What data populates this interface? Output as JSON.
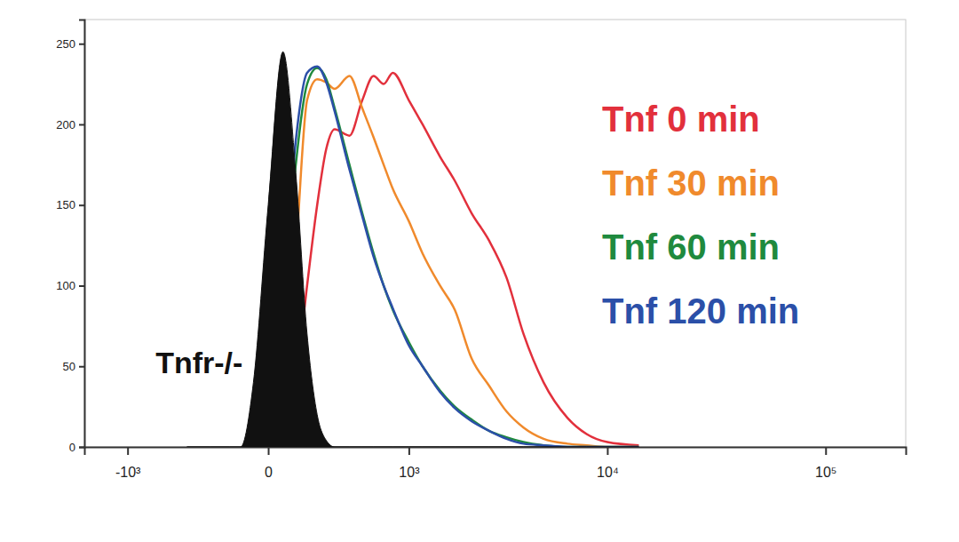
{
  "chart_data": {
    "type": "line",
    "log": "x",
    "legend": "upper right",
    "xlim": [
      -1740,
      231000
    ],
    "ylim": [
      0,
      265
    ],
    "xticks": [
      {
        "value": -1000,
        "label": "-10³"
      },
      0,
      {
        "value": 1000,
        "label": "10³"
      },
      {
        "value": 10000,
        "label": "10⁴"
      },
      {
        "value": 100000,
        "label": "10⁵"
      }
    ],
    "yticks": [
      0,
      50,
      100,
      150,
      200,
      250
    ],
    "x": [
      -400,
      -250,
      -150,
      -100,
      -50,
      0,
      50,
      100,
      150,
      200,
      250,
      300,
      400,
      500,
      600,
      700,
      800,
      1000,
      1200,
      1500,
      1800,
      2200,
      2700,
      3300,
      4000,
      5000,
      6500,
      8000,
      10000,
      14000
    ],
    "series": [
      {
        "name": "Tnf 0 min",
        "color": "#e2303c",
        "type": "line",
        "values": [
          null,
          null,
          null,
          null,
          null,
          0,
          5,
          40,
          100,
          150,
          185,
          197,
          193,
          215,
          230,
          225,
          232,
          215,
          200,
          180,
          165,
          145,
          128,
          105,
          70,
          40,
          18,
          8,
          3,
          1
        ]
      },
      {
        "name": "Tnf 30 min",
        "color": "#f08a2c",
        "type": "line",
        "values": [
          null,
          null,
          null,
          null,
          null,
          0,
          30,
          120,
          215,
          228,
          226,
          222,
          230,
          210,
          192,
          175,
          160,
          140,
          120,
          100,
          85,
          55,
          38,
          22,
          12,
          5,
          2,
          1,
          0,
          0
        ]
      },
      {
        "name": "Tnf 60 min",
        "color": "#1f8a3e",
        "type": "line",
        "values": [
          null,
          null,
          null,
          null,
          null,
          0,
          80,
          175,
          225,
          235,
          228,
          210,
          175,
          145,
          120,
          100,
          85,
          65,
          50,
          35,
          25,
          17,
          10,
          6,
          3,
          1,
          0,
          0,
          0,
          0
        ]
      },
      {
        "name": "Tnf 120 min",
        "color": "#2b4fa8",
        "type": "line",
        "values": [
          null,
          null,
          null,
          null,
          null,
          0,
          90,
          190,
          232,
          236,
          226,
          208,
          172,
          143,
          118,
          100,
          86,
          63,
          50,
          34,
          24,
          16,
          10,
          5,
          2,
          1,
          0,
          0,
          0,
          0
        ]
      },
      {
        "name": "Tnfr-/-",
        "color": "#111111",
        "type": "area",
        "values": [
          0,
          0,
          0,
          0,
          40,
          150,
          245,
          170,
          70,
          20,
          4,
          0,
          0,
          0,
          0,
          0,
          0,
          0,
          0,
          0,
          0,
          0,
          0,
          0,
          0,
          0,
          0,
          0,
          0,
          0
        ]
      }
    ]
  }
}
